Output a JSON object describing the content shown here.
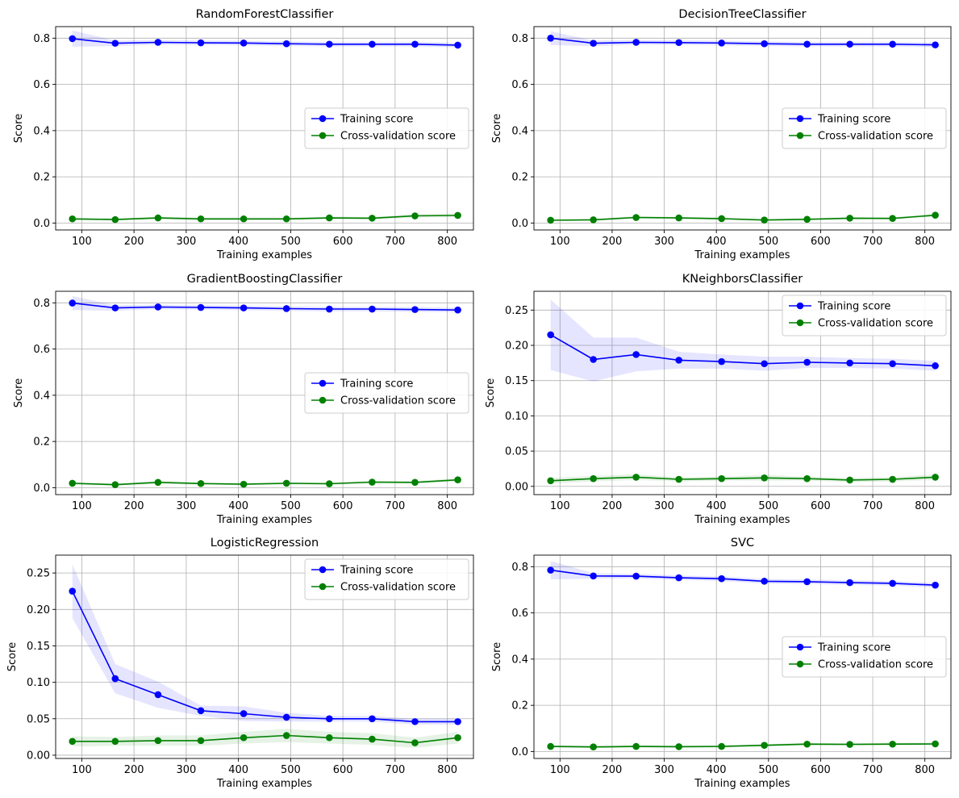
{
  "chart_data": [
    {
      "type": "line",
      "title": "RandomForestClassifier",
      "xlabel": "Training examples",
      "ylabel": "Score",
      "xlim": [
        50,
        850
      ],
      "ylim": [
        -0.03,
        0.85
      ],
      "xticks": [
        100,
        200,
        300,
        400,
        500,
        600,
        700,
        800
      ],
      "yticks": [
        "0.0",
        "0.2",
        "0.4",
        "0.6",
        "0.8"
      ],
      "legend_position": "center-right",
      "grid": true,
      "x": [
        82,
        164,
        246,
        328,
        410,
        492,
        574,
        656,
        738,
        820
      ],
      "series": [
        {
          "name": "Training score",
          "color": "#0000ff",
          "values": [
            0.798,
            0.778,
            0.782,
            0.78,
            0.779,
            0.776,
            0.774,
            0.774,
            0.774,
            0.77
          ],
          "band": [
            0.035,
            0.012,
            0.01,
            0.01,
            0.01,
            0.01,
            0.01,
            0.01,
            0.01,
            0.01
          ]
        },
        {
          "name": "Cross-validation score",
          "color": "#008000",
          "values": [
            0.018,
            0.015,
            0.022,
            0.018,
            0.018,
            0.018,
            0.022,
            0.021,
            0.031,
            0.033
          ],
          "band": [
            0.006,
            0.005,
            0.006,
            0.005,
            0.005,
            0.005,
            0.006,
            0.006,
            0.007,
            0.007
          ]
        }
      ]
    },
    {
      "type": "line",
      "title": "DecisionTreeClassifier",
      "xlabel": "Training examples",
      "ylabel": "Score",
      "xlim": [
        50,
        850
      ],
      "ylim": [
        -0.03,
        0.85
      ],
      "xticks": [
        100,
        200,
        300,
        400,
        500,
        600,
        700,
        800
      ],
      "yticks": [
        "0.0",
        "0.2",
        "0.4",
        "0.6",
        "0.8"
      ],
      "legend_position": "center-right",
      "grid": true,
      "x": [
        82,
        164,
        246,
        328,
        410,
        492,
        574,
        656,
        738,
        820
      ],
      "series": [
        {
          "name": "Training score",
          "color": "#0000ff",
          "values": [
            0.8,
            0.778,
            0.782,
            0.781,
            0.779,
            0.776,
            0.774,
            0.774,
            0.774,
            0.771
          ],
          "band": [
            0.03,
            0.012,
            0.01,
            0.01,
            0.01,
            0.01,
            0.01,
            0.01,
            0.01,
            0.01
          ]
        },
        {
          "name": "Cross-validation score",
          "color": "#008000",
          "values": [
            0.012,
            0.014,
            0.024,
            0.022,
            0.019,
            0.013,
            0.016,
            0.021,
            0.02,
            0.034
          ],
          "band": [
            0.004,
            0.004,
            0.006,
            0.005,
            0.005,
            0.004,
            0.005,
            0.005,
            0.005,
            0.006
          ]
        }
      ]
    },
    {
      "type": "line",
      "title": "GradientBoostingClassifier",
      "xlabel": "Training examples",
      "ylabel": "Score",
      "xlim": [
        50,
        850
      ],
      "ylim": [
        -0.03,
        0.85
      ],
      "xticks": [
        100,
        200,
        300,
        400,
        500,
        600,
        700,
        800
      ],
      "yticks": [
        "0.0",
        "0.2",
        "0.4",
        "0.6",
        "0.8"
      ],
      "legend_position": "center-right",
      "grid": true,
      "x": [
        82,
        164,
        246,
        328,
        410,
        492,
        574,
        656,
        738,
        820
      ],
      "series": [
        {
          "name": "Training score",
          "color": "#0000ff",
          "values": [
            0.799,
            0.778,
            0.782,
            0.78,
            0.778,
            0.775,
            0.773,
            0.773,
            0.771,
            0.769
          ],
          "band": [
            0.03,
            0.012,
            0.01,
            0.01,
            0.01,
            0.01,
            0.01,
            0.01,
            0.01,
            0.01
          ]
        },
        {
          "name": "Cross-validation score",
          "color": "#008000",
          "values": [
            0.019,
            0.013,
            0.023,
            0.018,
            0.015,
            0.019,
            0.017,
            0.024,
            0.023,
            0.034
          ],
          "band": [
            0.006,
            0.005,
            0.006,
            0.005,
            0.005,
            0.005,
            0.005,
            0.006,
            0.006,
            0.007
          ]
        }
      ]
    },
    {
      "type": "line",
      "title": "KNeighborsClassifier",
      "xlabel": "Training examples",
      "ylabel": "Score",
      "xlim": [
        50,
        850
      ],
      "ylim": [
        -0.0117,
        0.2767
      ],
      "xticks": [
        100,
        200,
        300,
        400,
        500,
        600,
        700,
        800
      ],
      "yticks": [
        "0.00",
        "0.05",
        "0.10",
        "0.15",
        "0.20",
        "0.25"
      ],
      "legend_position": "top-right",
      "grid": true,
      "x": [
        82,
        164,
        246,
        328,
        410,
        492,
        574,
        656,
        738,
        820
      ],
      "series": [
        {
          "name": "Training score",
          "color": "#0000ff",
          "values": [
            0.215,
            0.18,
            0.187,
            0.179,
            0.177,
            0.174,
            0.176,
            0.175,
            0.174,
            0.171
          ],
          "band": [
            0.05,
            0.031,
            0.024,
            0.012,
            0.01,
            0.01,
            0.008,
            0.007,
            0.007,
            0.007
          ]
        },
        {
          "name": "Cross-validation score",
          "color": "#008000",
          "values": [
            0.008,
            0.011,
            0.013,
            0.01,
            0.011,
            0.012,
            0.011,
            0.009,
            0.01,
            0.013
          ],
          "band": [
            0.004,
            0.004,
            0.004,
            0.003,
            0.003,
            0.004,
            0.003,
            0.003,
            0.003,
            0.004
          ]
        }
      ]
    },
    {
      "type": "line",
      "title": "LogisticRegression",
      "xlabel": "Training examples",
      "ylabel": "Score",
      "xlim": [
        50,
        850
      ],
      "ylim": [
        -0.0045,
        0.2745
      ],
      "xticks": [
        100,
        200,
        300,
        400,
        500,
        600,
        700,
        800
      ],
      "yticks": [
        "0.00",
        "0.05",
        "0.10",
        "0.15",
        "0.20",
        "0.25"
      ],
      "legend_position": "top-right",
      "grid": true,
      "x": [
        82,
        164,
        246,
        328,
        410,
        492,
        574,
        656,
        738,
        820
      ],
      "series": [
        {
          "name": "Training score",
          "color": "#0000ff",
          "values": [
            0.225,
            0.105,
            0.083,
            0.061,
            0.057,
            0.052,
            0.05,
            0.05,
            0.046,
            0.046
          ],
          "band": [
            0.037,
            0.02,
            0.018,
            0.007,
            0.01,
            0.006,
            0.004,
            0.004,
            0.004,
            0.004
          ]
        },
        {
          "name": "Cross-validation score",
          "color": "#008000",
          "values": [
            0.019,
            0.019,
            0.02,
            0.02,
            0.024,
            0.027,
            0.024,
            0.022,
            0.017,
            0.024
          ],
          "band": [
            0.007,
            0.006,
            0.007,
            0.007,
            0.008,
            0.009,
            0.008,
            0.008,
            0.007,
            0.008
          ]
        }
      ]
    },
    {
      "type": "line",
      "title": "SVC",
      "xlabel": "Training examples",
      "ylabel": "Score",
      "xlim": [
        50,
        850
      ],
      "ylim": [
        -0.03,
        0.85
      ],
      "xticks": [
        100,
        200,
        300,
        400,
        500,
        600,
        700,
        800
      ],
      "yticks": [
        "0.0",
        "0.2",
        "0.4",
        "0.6",
        "0.8"
      ],
      "legend_position": "center-right",
      "grid": true,
      "x": [
        82,
        164,
        246,
        328,
        410,
        492,
        574,
        656,
        738,
        820
      ],
      "series": [
        {
          "name": "Training score",
          "color": "#0000ff",
          "values": [
            0.785,
            0.76,
            0.759,
            0.752,
            0.748,
            0.737,
            0.735,
            0.731,
            0.728,
            0.72
          ],
          "band": [
            0.04,
            0.012,
            0.01,
            0.01,
            0.01,
            0.01,
            0.01,
            0.01,
            0.01,
            0.01
          ]
        },
        {
          "name": "Cross-validation score",
          "color": "#008000",
          "values": [
            0.022,
            0.02,
            0.022,
            0.021,
            0.022,
            0.027,
            0.032,
            0.031,
            0.032,
            0.033
          ],
          "band": [
            0.005,
            0.005,
            0.005,
            0.005,
            0.005,
            0.005,
            0.006,
            0.006,
            0.006,
            0.006
          ]
        }
      ]
    }
  ]
}
